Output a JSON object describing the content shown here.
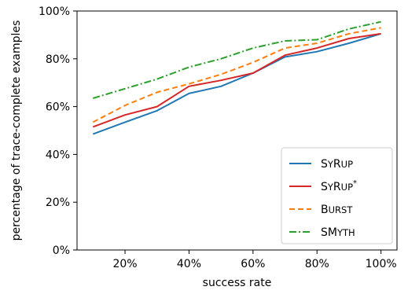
{
  "chart_data": {
    "type": "line",
    "xlabel": "success rate",
    "ylabel": "percentage of trace-complete examples",
    "xlim": [
      5,
      105
    ],
    "ylim": [
      0,
      100
    ],
    "x_ticks": [
      20,
      40,
      60,
      80,
      100
    ],
    "x_tick_labels": [
      "20%",
      "40%",
      "60%",
      "80%",
      "100%"
    ],
    "y_ticks": [
      0,
      20,
      40,
      60,
      80,
      100
    ],
    "y_tick_labels": [
      "0%",
      "20%",
      "40%",
      "60%",
      "80%",
      "100%"
    ],
    "grid": false,
    "legend_position": "bottom-right",
    "x": [
      10,
      20,
      30,
      40,
      50,
      60,
      70,
      80,
      90,
      100
    ],
    "series": [
      {
        "name": "SYRUP",
        "legend_parts": [
          {
            "t": "S",
            "small": false
          },
          {
            "t": "Y",
            "small": true
          },
          {
            "t": "R",
            "small": false
          },
          {
            "t": "UP",
            "small": true
          }
        ],
        "color": "#1f77b4",
        "dash": "solid",
        "values": [
          48.5,
          53.5,
          58.3,
          65.5,
          68.5,
          74.0,
          80.8,
          83.0,
          86.5,
          90.5
        ]
      },
      {
        "name": "SYRUP*",
        "legend_parts": [
          {
            "t": "S",
            "small": false
          },
          {
            "t": "Y",
            "small": true
          },
          {
            "t": "R",
            "small": false
          },
          {
            "t": "UP",
            "small": true
          },
          {
            "t": "*",
            "sup": true
          }
        ],
        "color": "#d62728",
        "dash": "solid",
        "values": [
          51.5,
          56.5,
          60.0,
          68.5,
          71.0,
          74.0,
          81.5,
          84.5,
          88.5,
          90.5
        ]
      },
      {
        "name": "BURST",
        "legend_parts": [
          {
            "t": "B",
            "small": false
          },
          {
            "t": "URST",
            "small": true
          }
        ],
        "color": "#ff7f0e",
        "dash": "dashed",
        "values": [
          53.5,
          60.5,
          66.0,
          69.5,
          73.5,
          78.5,
          84.5,
          86.5,
          90.5,
          93.0
        ]
      },
      {
        "name": "SMYTH",
        "legend_parts": [
          {
            "t": "SM",
            "small": false
          },
          {
            "t": "YTH",
            "small": true
          }
        ],
        "color": "#2ca02c",
        "dash": "dashdot",
        "values": [
          63.5,
          67.5,
          71.5,
          76.5,
          80.0,
          84.5,
          87.5,
          88.0,
          92.5,
          95.5
        ]
      }
    ]
  }
}
